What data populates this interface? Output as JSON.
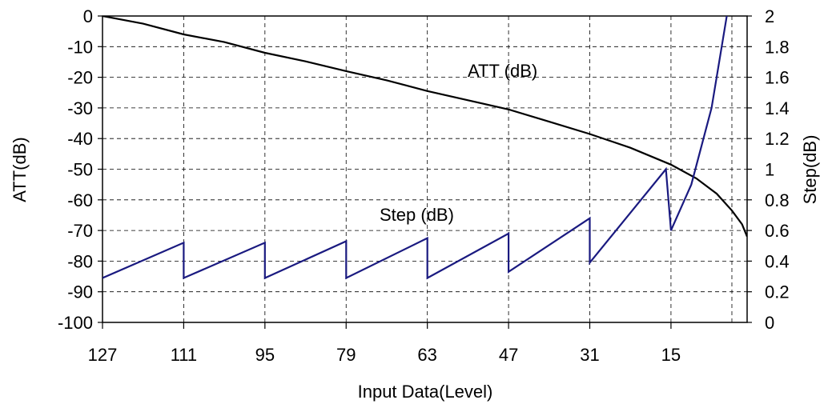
{
  "chart_data": {
    "type": "line",
    "xlabel": "Input Data(Level)",
    "ylabel_left": "ATT(dB)",
    "ylabel_right": "Step(dB)",
    "x_ticks": [
      127,
      111,
      95,
      79,
      63,
      47,
      31,
      15
    ],
    "x_range": [
      127,
      0
    ],
    "ylim_left": [
      -100,
      0
    ],
    "ylim_right": [
      0,
      2
    ],
    "y_ticks_left": [
      "0",
      "-10",
      "-20",
      "-30",
      "-40",
      "-50",
      "-60",
      "-70",
      "-80",
      "-90",
      "-100"
    ],
    "y_ticks_right": [
      "2",
      "1.8",
      "1.6",
      "1.4",
      "1.2",
      "1",
      "0.8",
      "0.6",
      "0.4",
      "0.2",
      "0"
    ],
    "grid": true,
    "annotations": [
      {
        "text": "ATT (dB)",
        "series": "ATT (dB)"
      },
      {
        "text": "Step (dB)",
        "series": "Step (dB)"
      }
    ],
    "series": [
      {
        "name": "ATT (dB)",
        "axis": "left",
        "color": "#000000",
        "points": [
          [
            127,
            0
          ],
          [
            119,
            -2.5
          ],
          [
            111,
            -6.0
          ],
          [
            103,
            -8.5
          ],
          [
            95,
            -12.0
          ],
          [
            87,
            -14.8
          ],
          [
            79,
            -18.0
          ],
          [
            71,
            -21.0
          ],
          [
            63,
            -24.5
          ],
          [
            55,
            -27.5
          ],
          [
            47,
            -30.5
          ],
          [
            39,
            -34.5
          ],
          [
            31,
            -38.5
          ],
          [
            23,
            -43.0
          ],
          [
            15,
            -48.5
          ],
          [
            10,
            -53.0
          ],
          [
            6,
            -58.0
          ],
          [
            3,
            -63.5
          ],
          [
            1,
            -68.0
          ],
          [
            0,
            -72.0
          ]
        ]
      },
      {
        "name": "Step (dB)",
        "axis": "right",
        "color": "#1a1a80",
        "points": [
          [
            127,
            0.29
          ],
          [
            111,
            0.52
          ],
          [
            111,
            0.29
          ],
          [
            95,
            0.52
          ],
          [
            95,
            0.29
          ],
          [
            79,
            0.53
          ],
          [
            79,
            0.29
          ],
          [
            63,
            0.55
          ],
          [
            63,
            0.29
          ],
          [
            47,
            0.58
          ],
          [
            47,
            0.33
          ],
          [
            31,
            0.68
          ],
          [
            31,
            0.39
          ],
          [
            16,
            1.0
          ],
          [
            15,
            0.6
          ],
          [
            11,
            0.9
          ],
          [
            7,
            1.4
          ],
          [
            4,
            2.0
          ]
        ]
      }
    ]
  }
}
